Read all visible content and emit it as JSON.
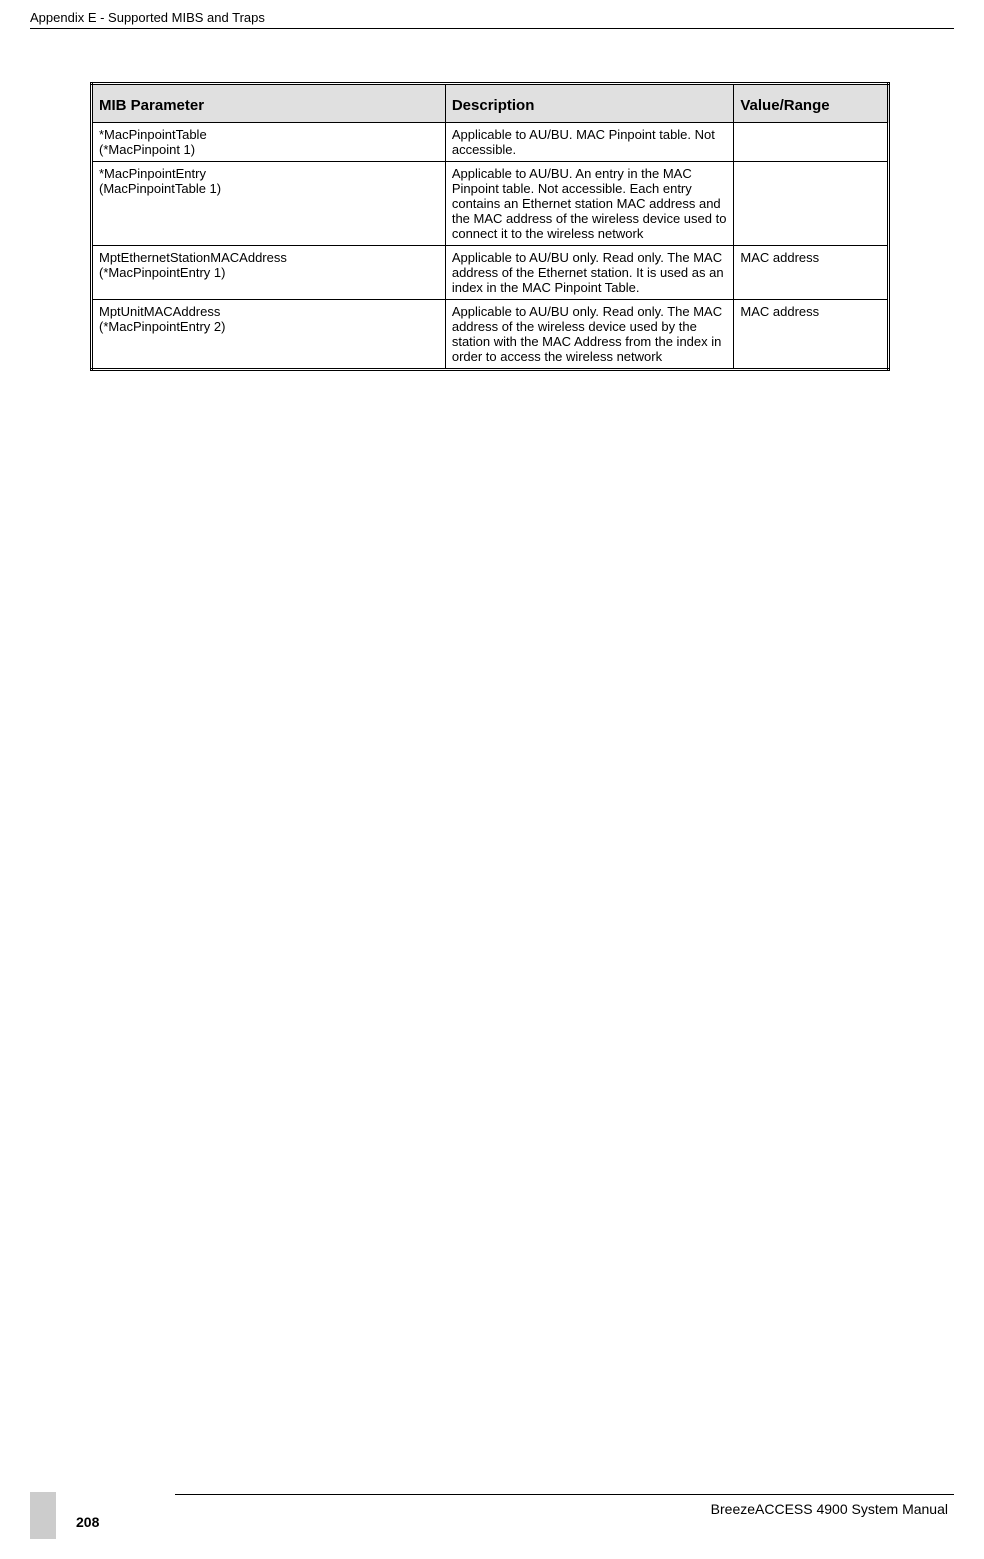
{
  "header": {
    "title": "Appendix E - Supported MIBS and Traps"
  },
  "table": {
    "columns": [
      "MIB Parameter",
      "Description",
      "Value/Range"
    ],
    "rows": [
      {
        "param": "*MacPinpointTable\n(*MacPinpoint 1)",
        "desc": "Applicable to AU/BU. MAC Pinpoint table. Not accessible.",
        "range": ""
      },
      {
        "param": "*MacPinpointEntry\n(MacPinpointTable 1)",
        "desc": "Applicable to AU/BU. An entry in the MAC Pinpoint table. Not accessible. Each entry contains an Ethernet station MAC address and the MAC address of the wireless device used to connect it to the wireless network",
        "range": ""
      },
      {
        "param": "MptEthernetStationMACAddress\n(*MacPinpointEntry 1)",
        "desc": "Applicable to AU/BU only. Read only. The MAC address of the Ethernet station. It is used as an index in the MAC Pinpoint Table.",
        "range": "MAC address"
      },
      {
        "param": "MptUnitMACAddress\n(*MacPinpointEntry 2)",
        "desc": "Applicable to AU/BU only. Read only. The MAC address of the wireless device used by the station with the MAC Address from the index in order to access the wireless network",
        "range": "MAC address"
      }
    ]
  },
  "footer": {
    "product": "BreezeACCESS 4900 System Manual",
    "page": "208"
  }
}
